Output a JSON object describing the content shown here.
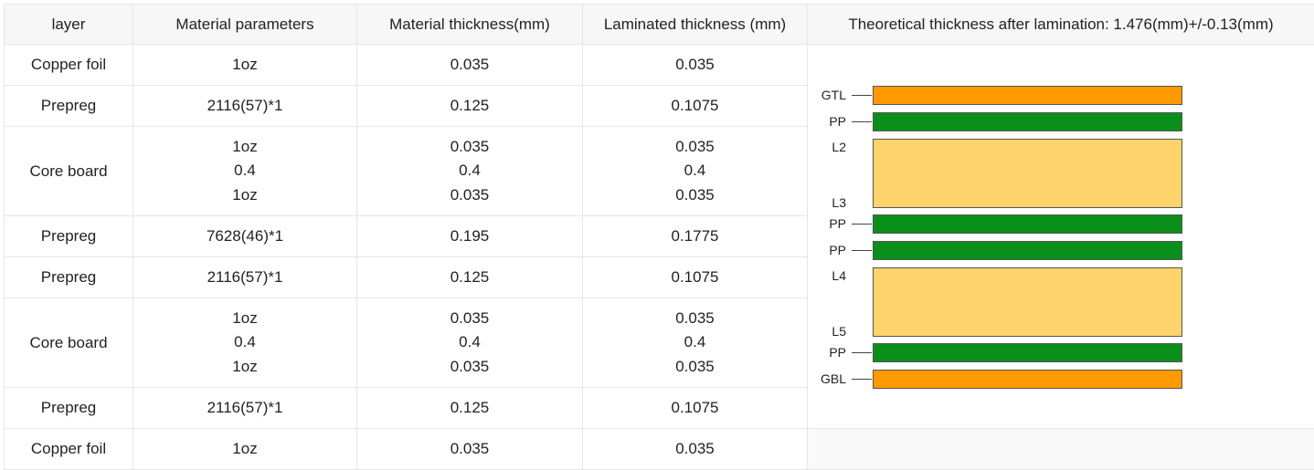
{
  "header": {
    "layer": "layer",
    "material_parameters": "Material parameters",
    "material_thickness": "Material thickness(mm)",
    "laminated_thickness": "Laminated thickness (mm)",
    "theoretical": "Theoretical thickness after lamination: 1.476(mm)+/-0.13(mm)"
  },
  "rows": [
    {
      "layer": "Copper foil",
      "params": [
        "1oz"
      ],
      "material": [
        "0.035"
      ],
      "laminated": [
        "0.035"
      ]
    },
    {
      "layer": "Prepreg",
      "params": [
        "2116(57)*1"
      ],
      "material": [
        "0.125"
      ],
      "laminated": [
        "0.1075"
      ]
    },
    {
      "layer": "Core board",
      "params": [
        "1oz",
        "0.4",
        "1oz"
      ],
      "material": [
        "0.035",
        "0.4",
        "0.035"
      ],
      "laminated": [
        "0.035",
        "0.4",
        "0.035"
      ]
    },
    {
      "layer": "Prepreg",
      "params": [
        "7628(46)*1"
      ],
      "material": [
        "0.195"
      ],
      "laminated": [
        "0.1775"
      ]
    },
    {
      "layer": "Prepreg",
      "params": [
        "2116(57)*1"
      ],
      "material": [
        "0.125"
      ],
      "laminated": [
        "0.1075"
      ]
    },
    {
      "layer": "Core board",
      "params": [
        "1oz",
        "0.4",
        "1oz"
      ],
      "material": [
        "0.035",
        "0.4",
        "0.035"
      ],
      "laminated": [
        "0.035",
        "0.4",
        "0.035"
      ]
    },
    {
      "layer": "Prepreg",
      "params": [
        "2116(57)*1"
      ],
      "material": [
        "0.125"
      ],
      "laminated": [
        "0.1075"
      ]
    },
    {
      "layer": "Copper foil",
      "params": [
        "1oz"
      ],
      "material": [
        "0.035"
      ],
      "laminated": [
        "0.035"
      ]
    }
  ],
  "stackup": [
    {
      "label": "GTL",
      "type": "copper"
    },
    {
      "label": "PP",
      "type": "prepreg"
    },
    {
      "label": "L2",
      "label_bottom": "L3",
      "type": "core"
    },
    {
      "label": "PP",
      "type": "prepreg"
    },
    {
      "label": "PP",
      "type": "prepreg"
    },
    {
      "label": "L4",
      "label_bottom": "L5",
      "type": "core"
    },
    {
      "label": "PP",
      "type": "prepreg"
    },
    {
      "label": "GBL",
      "type": "copper"
    }
  ],
  "colors": {
    "copper": "#ff9900",
    "prepreg": "#0a8f1a",
    "core": "#ffd36b"
  }
}
